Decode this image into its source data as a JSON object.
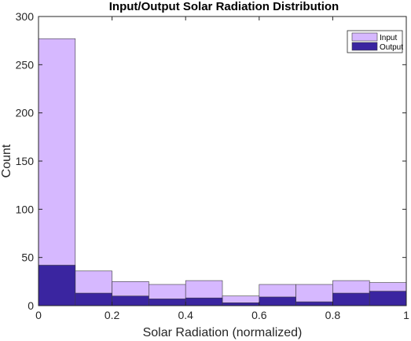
{
  "chart_data": {
    "type": "bar",
    "title": "Input/Output Solar Radiation Distribution",
    "xlabel": "Solar Radiation (normalized)",
    "ylabel": "Count",
    "xlim": [
      0,
      1
    ],
    "ylim": [
      0,
      300
    ],
    "xticks": [
      0,
      0.2,
      0.4,
      0.6,
      0.8,
      1
    ],
    "xtick_labels": [
      "0",
      "0.2",
      "0.4",
      "0.6",
      "0.8",
      "1"
    ],
    "yticks": [
      0,
      50,
      100,
      150,
      200,
      250,
      300
    ],
    "ytick_labels": [
      "0",
      "50",
      "100",
      "150",
      "200",
      "250",
      "300"
    ],
    "bin_edges": [
      0,
      0.1,
      0.2,
      0.3,
      0.4,
      0.5,
      0.6,
      0.7,
      0.8,
      0.9,
      1.0
    ],
    "series": [
      {
        "name": "Input",
        "color": "#d6b8ff",
        "values": [
          277,
          36,
          25,
          22,
          26,
          10,
          22,
          22,
          26,
          24
        ]
      },
      {
        "name": "Output",
        "color": "#3a25a0",
        "values": [
          42,
          13,
          10,
          7,
          8,
          3,
          9,
          4,
          13,
          15
        ]
      }
    ],
    "legend": "top-right",
    "grid": false,
    "style": "overlaid-histogram"
  }
}
